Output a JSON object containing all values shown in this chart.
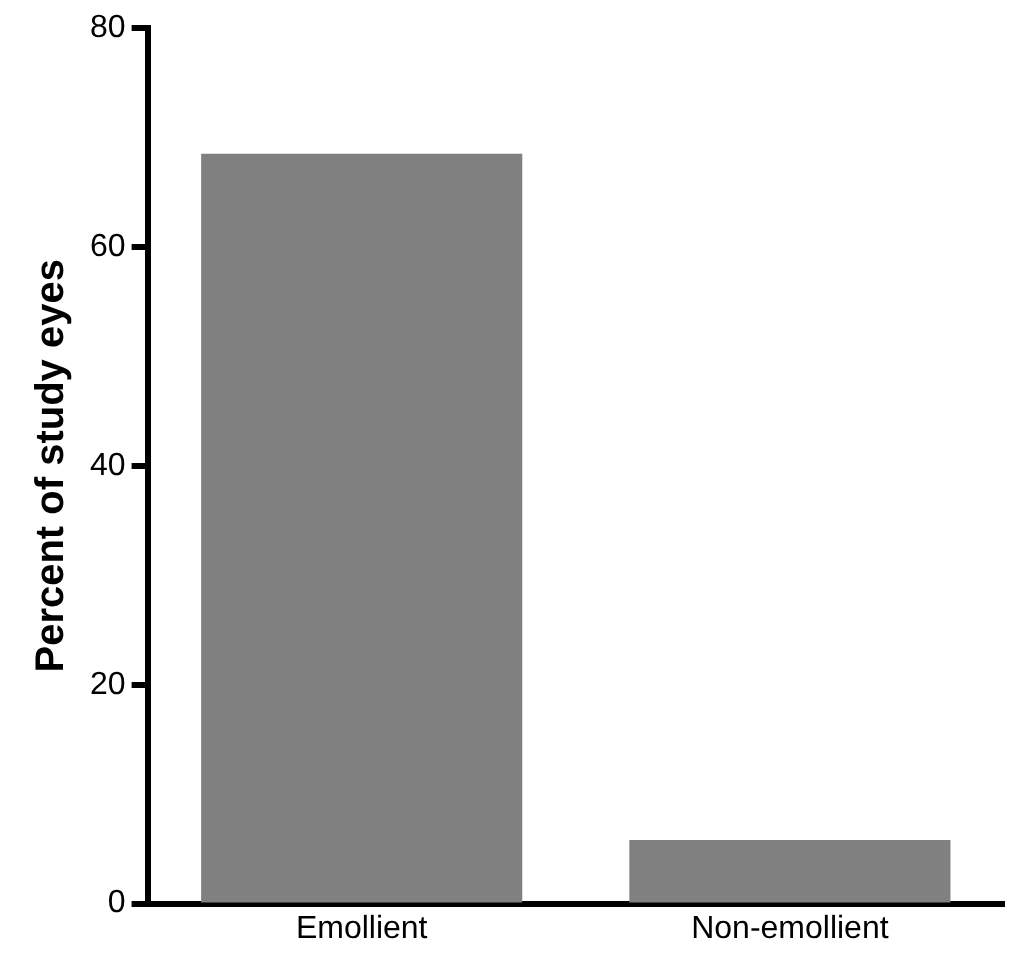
{
  "chart_data": {
    "type": "bar",
    "ylabel": "Percent of study eyes",
    "categories": [
      "Emollient",
      "Non-emollient"
    ],
    "values": [
      68.5,
      5.8
    ],
    "color": "#808080",
    "ylim": [
      0,
      80
    ],
    "yticks": [
      0,
      20,
      40,
      60,
      80
    ],
    "grid": false,
    "legend": false
  }
}
